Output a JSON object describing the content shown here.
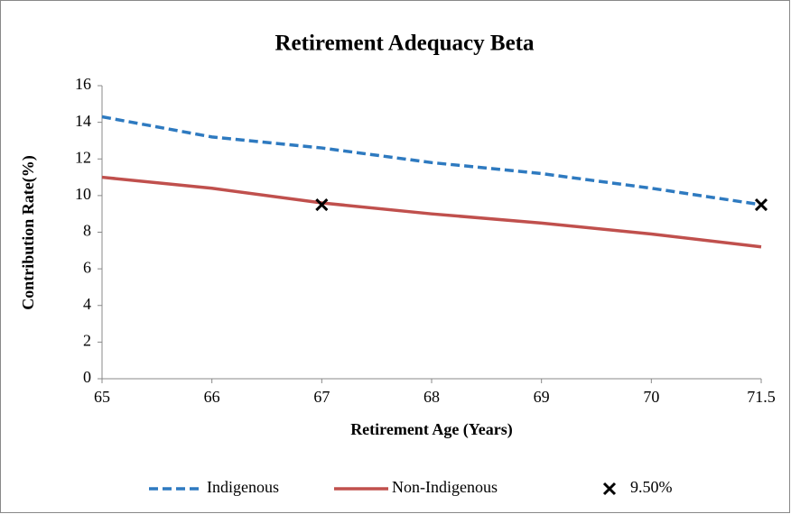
{
  "chart_data": {
    "type": "line",
    "title": "Retirement Adequacy Beta",
    "x_label": "Retirement Age (Years)",
    "y_label": "Contribution Rate(%)",
    "categories": [
      "65",
      "66",
      "67",
      "68",
      "69",
      "70",
      "71.5"
    ],
    "series": [
      {
        "name": "Indigenous",
        "color": "#2e7ac0",
        "style": "dashed",
        "values": [
          14.3,
          13.2,
          12.6,
          11.8,
          11.2,
          10.4,
          9.5
        ]
      },
      {
        "name": "Non-Indigenous",
        "color": "#c0504d",
        "style": "solid",
        "values": [
          11.0,
          10.4,
          9.6,
          9.0,
          8.5,
          7.9,
          7.2
        ]
      },
      {
        "name": "9.50%",
        "color": "#000000",
        "style": "marker-x",
        "values": [
          null,
          null,
          9.5,
          null,
          null,
          null,
          9.5
        ]
      }
    ],
    "ylim": [
      0,
      16
    ],
    "yticks": [
      0,
      2,
      4,
      6,
      8,
      10,
      12,
      14,
      16
    ],
    "grid": false,
    "legend": "bottom"
  }
}
